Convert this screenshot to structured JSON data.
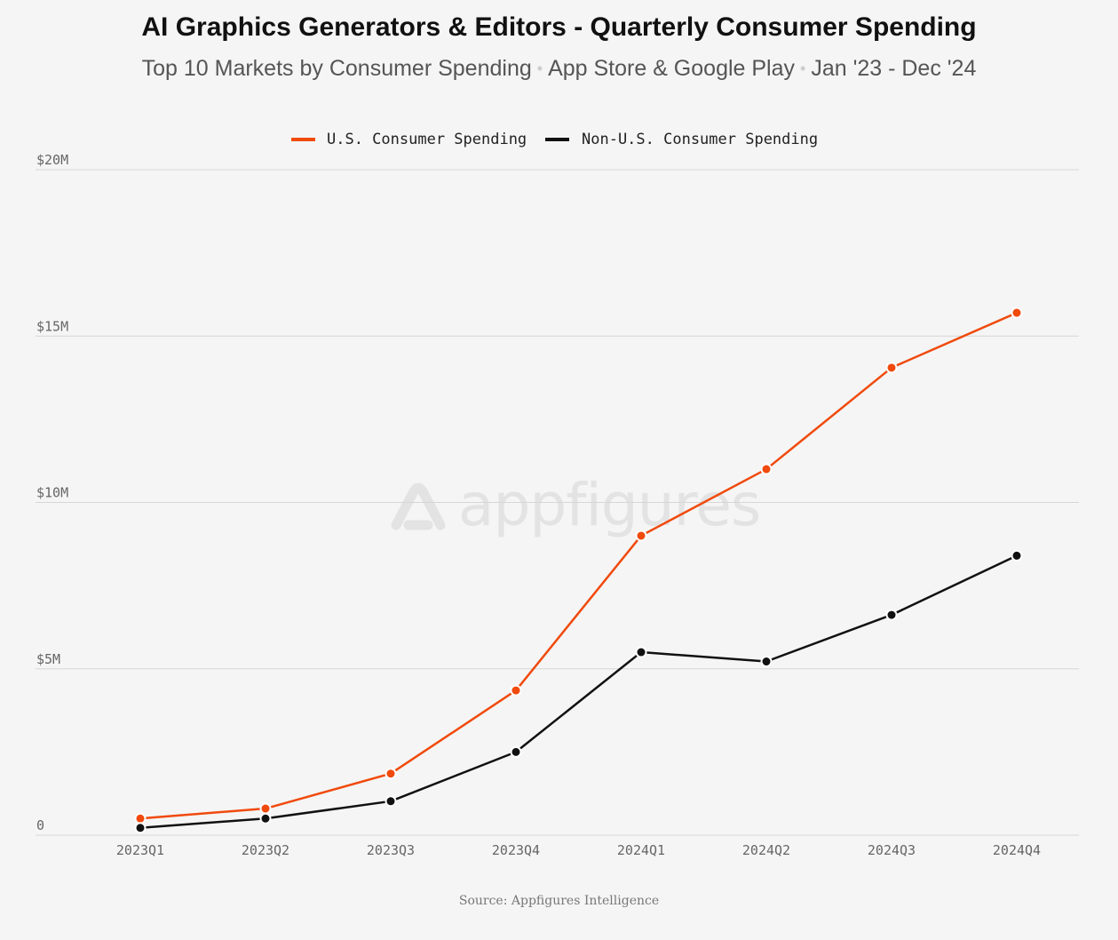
{
  "title": "AI Graphics Generators & Editors - Quarterly Consumer Spending",
  "subtitle": {
    "part1": "Top 10 Markets by Consumer Spending",
    "separator": "•",
    "part2": "App Store & Google Play",
    "part3": "Jan '23 - Dec '24"
  },
  "watermark": "appfigures",
  "source": "Source: Appfigures Intelligence",
  "colors": {
    "us": "#f04a0c",
    "non_us": "#111111",
    "grid": "#d6d6d6",
    "axis_text": "#666666"
  },
  "chart_data": {
    "type": "line",
    "categories": [
      "2023Q1",
      "2023Q2",
      "2023Q3",
      "2023Q4",
      "2024Q1",
      "2024Q2",
      "2024Q3",
      "2024Q4"
    ],
    "series": [
      {
        "name": "U.S. Consumer Spending",
        "color": "#f04a0c",
        "values": [
          0.5,
          0.8,
          1.85,
          4.35,
          9.0,
          11.0,
          14.05,
          15.7
        ]
      },
      {
        "name": "Non-U.S. Consumer Spending",
        "color": "#111111",
        "values": [
          0.22,
          0.5,
          1.02,
          2.5,
          5.5,
          5.22,
          6.62,
          8.4
        ]
      }
    ],
    "y_unit": "millions USD",
    "ylim": [
      0,
      20
    ],
    "yticks": [
      0,
      5,
      10,
      15,
      20
    ],
    "ytick_labels": [
      "0",
      "$5M",
      "$10M",
      "$15M",
      "$20M"
    ],
    "grid": true,
    "legend_position": "top-center"
  }
}
